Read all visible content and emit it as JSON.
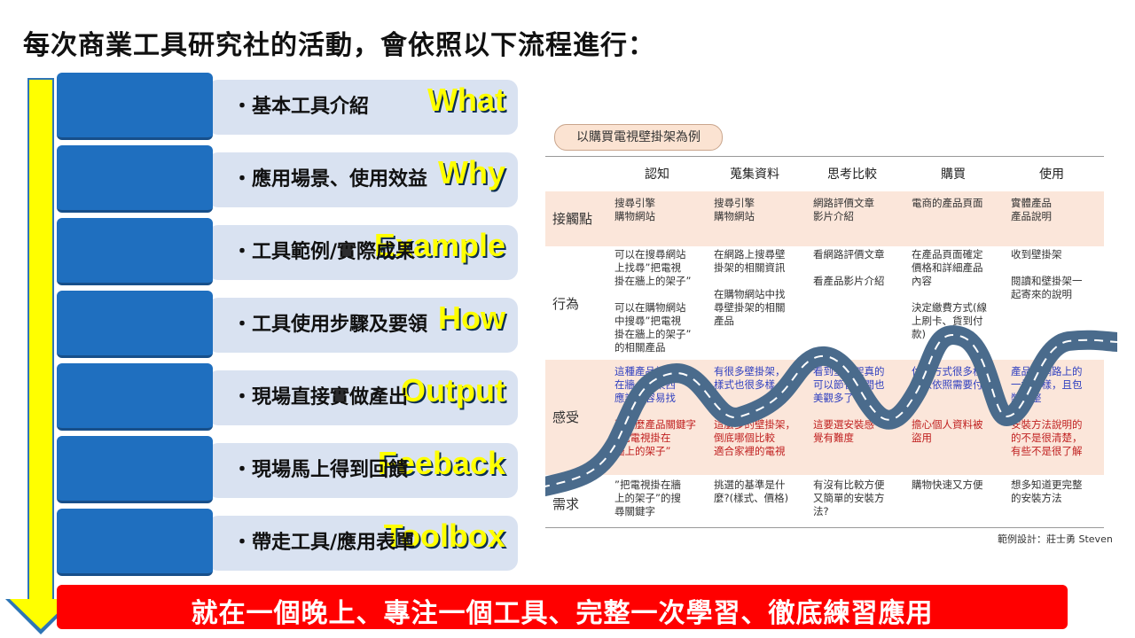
{
  "title": "每次商業工具研究社的活動，會依照以下流程進行：",
  "steps": [
    {
      "label": "What",
      "desc": "・基本工具介紹"
    },
    {
      "label": "Why",
      "desc": "・應用場景、使用效益"
    },
    {
      "label": "Example",
      "desc": "・工具範例/實際成果"
    },
    {
      "label": "How",
      "desc": "・工具使用步驟及要領"
    },
    {
      "label": "Output",
      "desc": "・現場直接實做產出"
    },
    {
      "label": "Feeback",
      "desc": "・現場馬上得到回饋"
    },
    {
      "label": "Toolbox",
      "desc": "・帶走工具/應用表單"
    }
  ],
  "banner": "就在一個晚上、專注一個工具、完整一次學習、徹底練習應用",
  "example": {
    "tag": "以購買電視壁掛架為例",
    "columns": [
      "認知",
      "蒐集資料",
      "思考比較",
      "購買",
      "使用"
    ],
    "row_labels": [
      "接觸點",
      "行為",
      "感受",
      "需求"
    ],
    "touchpoints": [
      "搜尋引擎\n購物網站",
      "搜尋引擎\n購物網站",
      "網路評價文章\n影片介紹",
      "電商的產品頁面",
      "實體產品\n產品說明"
    ],
    "behaviors": [
      "可以在搜尋網站\n上找尋”把電視\n掛在牆上的架子”\n\n可以在購物網站\n中搜尋”把電視\n掛在牆上的架子”\n的相關產品",
      "在網路上搜尋壁\n掛架的相關資訊\n\n在購物網站中找\n尋壁掛架的相關\n產品",
      "看網路評價文章\n\n看產品影片介紹",
      "在產品頁面確定\n價格和詳細產品\n內容\n\n決定繳費方式(線\n上刷卡、貨到付\n款)",
      "收到壁掛架\n\n閱讀和壁掛架一\n起寄來的說明"
    ],
    "feelings_pos": [
      "這種產品視掛\n在牆上的東西\n應該很容易找",
      "有很多壁掛架，\n樣式也很多樣",
      "看到壁掛架真的\n可以節省空間也\n美觀多了",
      "付款方式很多樣，\n可以依照需要付\n款",
      "產品跟網路上的\n一樣的樣，且包\n裝完整"
    ],
    "feelings_neg": [
      "要怎麼產品關鍵字\n”把電視掛在\n牆上的架子”",
      "這麼多的壁掛架，\n倒底哪個比較\n適合家裡的電視",
      "這要選安裝感\n覺有難度",
      "擔心個人資料被\n盜用",
      "安裝方法說明的\n的不是很清楚，\n有些不是很了解"
    ],
    "needs": [
      "”把電視掛在牆\n上的架子”的搜\n尋關鍵字",
      "挑選的基準是什\n麼?(樣式、價格)",
      "有沒有比較方便\n又簡單的安裝方\n法?",
      "購物快速又方便",
      "想多知道更完整\n的安裝方法"
    ],
    "credit": "範例設計：莊士勇 Steven"
  },
  "colors": {
    "arrow": "#ffff00",
    "label_bg": "#1f6fbf",
    "label_text": "#ffff00",
    "bar_bg": "#d9e2f1",
    "banner_bg": "#ff0000",
    "road": "#4a6b8c"
  }
}
